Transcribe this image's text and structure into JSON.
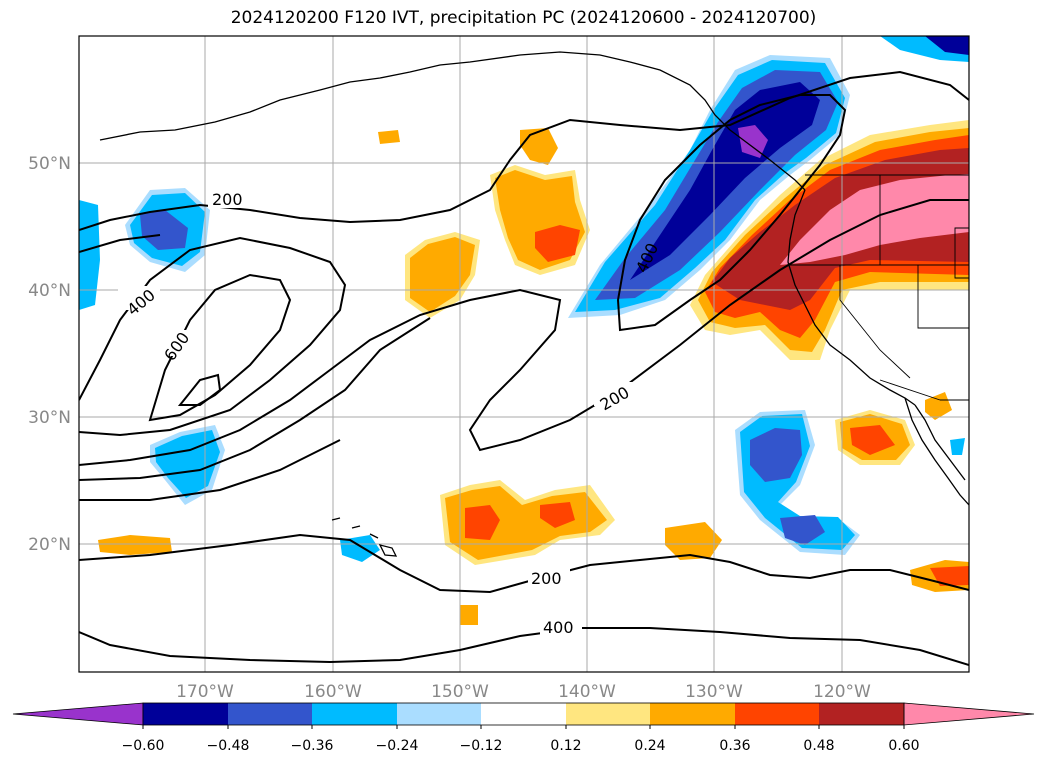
{
  "title": "2024120200 F120 IVT, precipitation PC (2024120600 - 2024120700)",
  "lon_ticks": [
    "170°W",
    "160°W",
    "150°W",
    "140°W",
    "130°W",
    "120°W"
  ],
  "lat_ticks": [
    "50°N",
    "40°N",
    "30°N",
    "20°N"
  ],
  "contour_labels": [
    "200",
    "400",
    "600",
    "400",
    "200",
    "200",
    "400"
  ],
  "colorbar": {
    "colors": [
      "#9933cc",
      "#000099",
      "#3355cc",
      "#00bbff",
      "#aaddff",
      "#ffffff",
      "#ffe680",
      "#ffaa00",
      "#ff4400",
      "#b22222",
      "#ff88aa"
    ],
    "ticks": [
      "−0.60",
      "−0.48",
      "−0.36",
      "−0.24",
      "−0.12",
      "0.12",
      "0.24",
      "0.36",
      "0.48",
      "0.60"
    ]
  },
  "colors": {
    "gridline": "#aaaaaa",
    "tick_label": "#888888",
    "contour": "#000000"
  }
}
